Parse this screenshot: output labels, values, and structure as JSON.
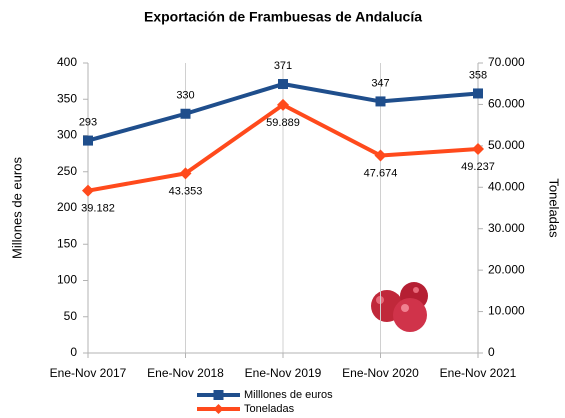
{
  "chart_data": {
    "type": "line",
    "title": "Exportación de Frambuesas de Andalucía",
    "categories": [
      "Ene-Nov 2017",
      "Ene-Nov 2018",
      "Ene-Nov 2019",
      "Ene-Nov 2020",
      "Ene-Nov 2021"
    ],
    "ylabel": "Millones de euros",
    "y2label": "Toneladas",
    "ylim": [
      0,
      400
    ],
    "yticks": [
      0,
      50,
      100,
      150,
      200,
      250,
      300,
      350,
      400
    ],
    "y2lim": [
      0,
      70000
    ],
    "y2ticks": [
      0,
      {
        "value": 10000,
        "label": "10.000"
      },
      {
        "value": 20000,
        "label": "20.000"
      },
      {
        "value": 30000,
        "label": "30.000"
      },
      {
        "value": 40000,
        "label": "40.000"
      },
      {
        "value": 50000,
        "label": "50.000"
      },
      {
        "value": 60000,
        "label": "60.000"
      },
      {
        "value": 70000,
        "label": "70.000"
      }
    ],
    "grid": true,
    "legend": "bottom",
    "series": [
      {
        "name": "Milllones de euros",
        "color": "#1f4e8c",
        "values": [
          293,
          330,
          371,
          347,
          358
        ]
      },
      {
        "name": "Toneladas",
        "color": "#ff4a1c",
        "axis": "y2",
        "values": [
          39182,
          43353,
          59889,
          47674,
          49237
        ],
        "value_labels": [
          "39.182",
          "43.353",
          "59.889",
          "47.674",
          "49.237"
        ]
      }
    ]
  }
}
